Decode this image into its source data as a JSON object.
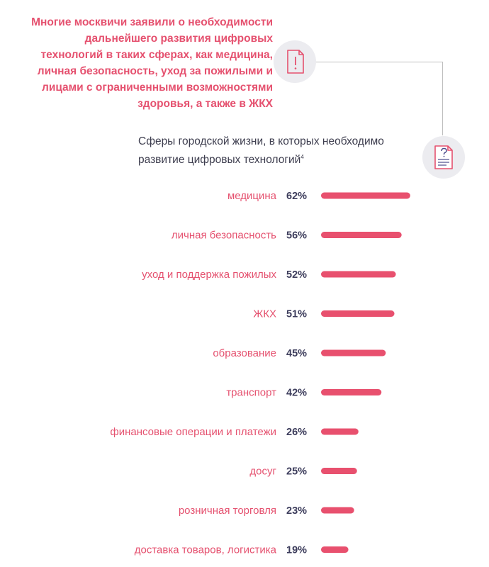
{
  "headline": "Многие москвичи заявили о необходимости дальнейшего развития цифровых технологий в таких сферах, как медицина, личная безопасность, уход за пожилыми и лицами с ограниченными возможностями здоровья, а также в ЖКХ",
  "icons": {
    "alert": "document-alert-icon",
    "survey": "document-question-icon"
  },
  "colors": {
    "accent": "#e5516f",
    "value_text": "#3d3d5c",
    "bar": "#e8506e"
  },
  "chart_data": {
    "type": "bar",
    "orientation": "horizontal",
    "title": "Сферы городской жизни, в которых необходимо развитие цифровых технологий",
    "title_footnote": "4",
    "unit": "%",
    "categories": [
      "медицина",
      "личная безопасность",
      "уход и поддержка пожилых",
      "ЖКХ",
      "образование",
      "транспорт",
      "финансовые операции и платежи",
      "досуг",
      "розничная торговля",
      "доставка товаров, логистика"
    ],
    "values": [
      62,
      56,
      52,
      51,
      45,
      42,
      26,
      25,
      23,
      19
    ],
    "value_labels": [
      "62%",
      "56%",
      "52%",
      "51%",
      "45%",
      "42%",
      "26%",
      "25%",
      "23%",
      "19%"
    ],
    "grid": false,
    "legend": "none"
  }
}
